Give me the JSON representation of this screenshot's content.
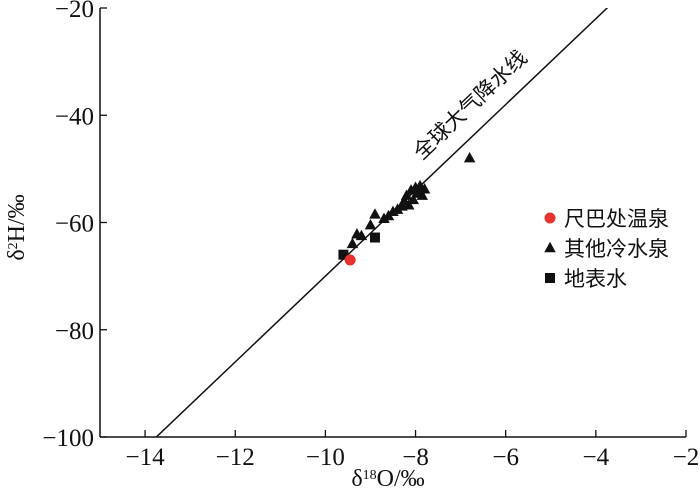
{
  "chart_data": {
    "type": "scatter",
    "title": "",
    "xlabel": {
      "prefix": "δ",
      "sup": "18",
      "suffix": "O/‰"
    },
    "ylabel": {
      "prefix": "δ",
      "sup": "2",
      "suffix": "H/‰"
    },
    "xlim": [
      -15,
      -2
    ],
    "ylim": [
      -100,
      -20
    ],
    "xticks": [
      -14,
      -12,
      -10,
      -8,
      -6,
      -4,
      -2
    ],
    "yticks": [
      -100,
      -80,
      -60,
      -40,
      -20
    ],
    "xtick_labels": [
      "−14",
      "−12",
      "−10",
      "−8",
      "−6",
      "−4",
      "−2"
    ],
    "ytick_labels": [
      "−100",
      "−80",
      "−60",
      "−40",
      "−20"
    ],
    "grid": false,
    "legend_position": "right",
    "reference_line": {
      "label": "全球大气降水线",
      "slope": 8,
      "intercept": 10
    },
    "series": [
      {
        "name": "尺巴处温泉",
        "marker": "circle",
        "color": "#e8322f",
        "points": [
          [
            -9.45,
            -67.0
          ]
        ]
      },
      {
        "name": "其他冷水泉",
        "marker": "triangle",
        "color": "#111111",
        "points": [
          [
            -9.4,
            -64.0
          ],
          [
            -9.3,
            -62.2
          ],
          [
            -9.2,
            -62.5
          ],
          [
            -9.0,
            -60.5
          ],
          [
            -8.9,
            -58.5
          ],
          [
            -8.7,
            -59.3
          ],
          [
            -8.6,
            -58.8
          ],
          [
            -8.5,
            -58.0
          ],
          [
            -8.4,
            -57.6
          ],
          [
            -8.3,
            -57.0
          ],
          [
            -8.25,
            -56.0
          ],
          [
            -8.2,
            -55.0
          ],
          [
            -8.15,
            -56.8
          ],
          [
            -8.1,
            -54.0
          ],
          [
            -8.05,
            -55.8
          ],
          [
            -8.0,
            -53.5
          ],
          [
            -7.95,
            -54.6
          ],
          [
            -7.9,
            -53.2
          ],
          [
            -7.85,
            -55.0
          ],
          [
            -7.8,
            -53.8
          ],
          [
            -6.8,
            -48.0
          ]
        ]
      },
      {
        "name": "地表水",
        "marker": "square",
        "color": "#111111",
        "points": [
          [
            -9.6,
            -66.0
          ],
          [
            -8.9,
            -62.8
          ]
        ]
      }
    ]
  }
}
